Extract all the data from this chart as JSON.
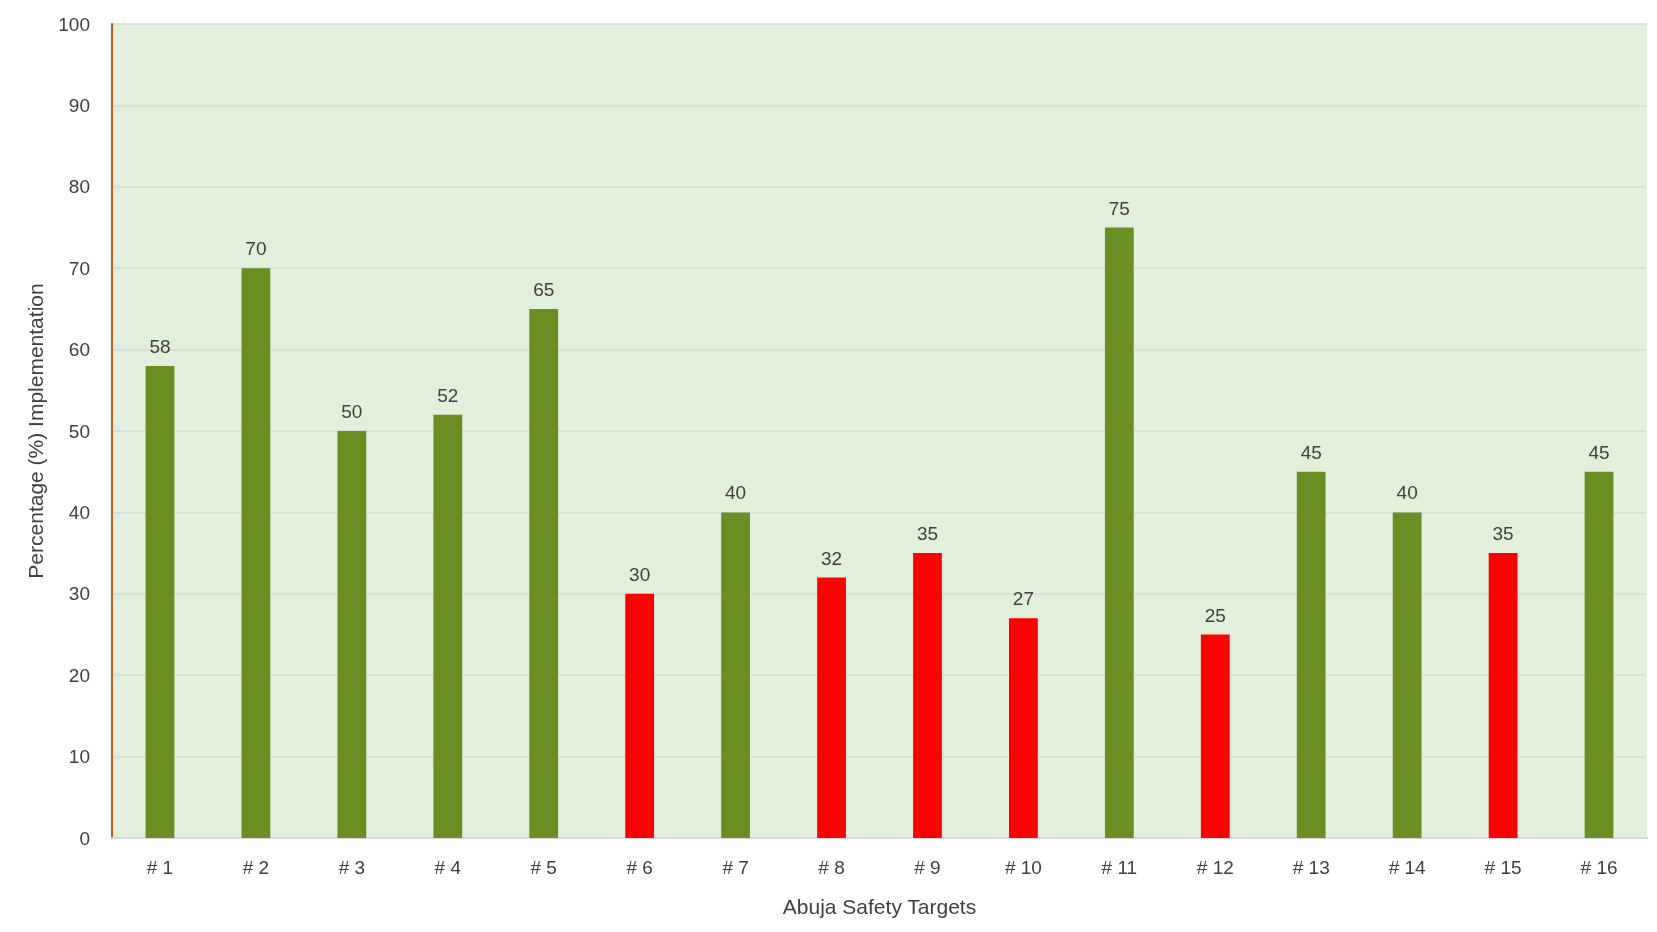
{
  "chart_data": {
    "type": "bar",
    "xlabel": "Abuja Safety Targets",
    "ylabel": "Percentage (%) Implementation",
    "categories": [
      "# 1",
      "# 2",
      "# 3",
      "# 4",
      "# 5",
      "# 6",
      "# 7",
      "# 8",
      "# 9",
      "# 10",
      "# 11",
      "# 12",
      "# 13",
      "# 14",
      "# 15",
      "# 16"
    ],
    "values": [
      58,
      70,
      50,
      52,
      65,
      30,
      40,
      32,
      35,
      27,
      75,
      25,
      45,
      40,
      35,
      45
    ],
    "colors": [
      "#6b8e23",
      "#6b8e23",
      "#6b8e23",
      "#6b8e23",
      "#6b8e23",
      "#ff0000",
      "#6b8e23",
      "#ff0000",
      "#ff0000",
      "#ff0000",
      "#6b8e23",
      "#ff0000",
      "#6b8e23",
      "#6b8e23",
      "#ff0000",
      "#6b8e23"
    ],
    "ylim": [
      0,
      100
    ],
    "yticks": [
      0,
      10,
      20,
      30,
      40,
      50,
      60,
      70,
      80,
      90,
      100
    ],
    "grid": "y",
    "data_labels": true
  }
}
